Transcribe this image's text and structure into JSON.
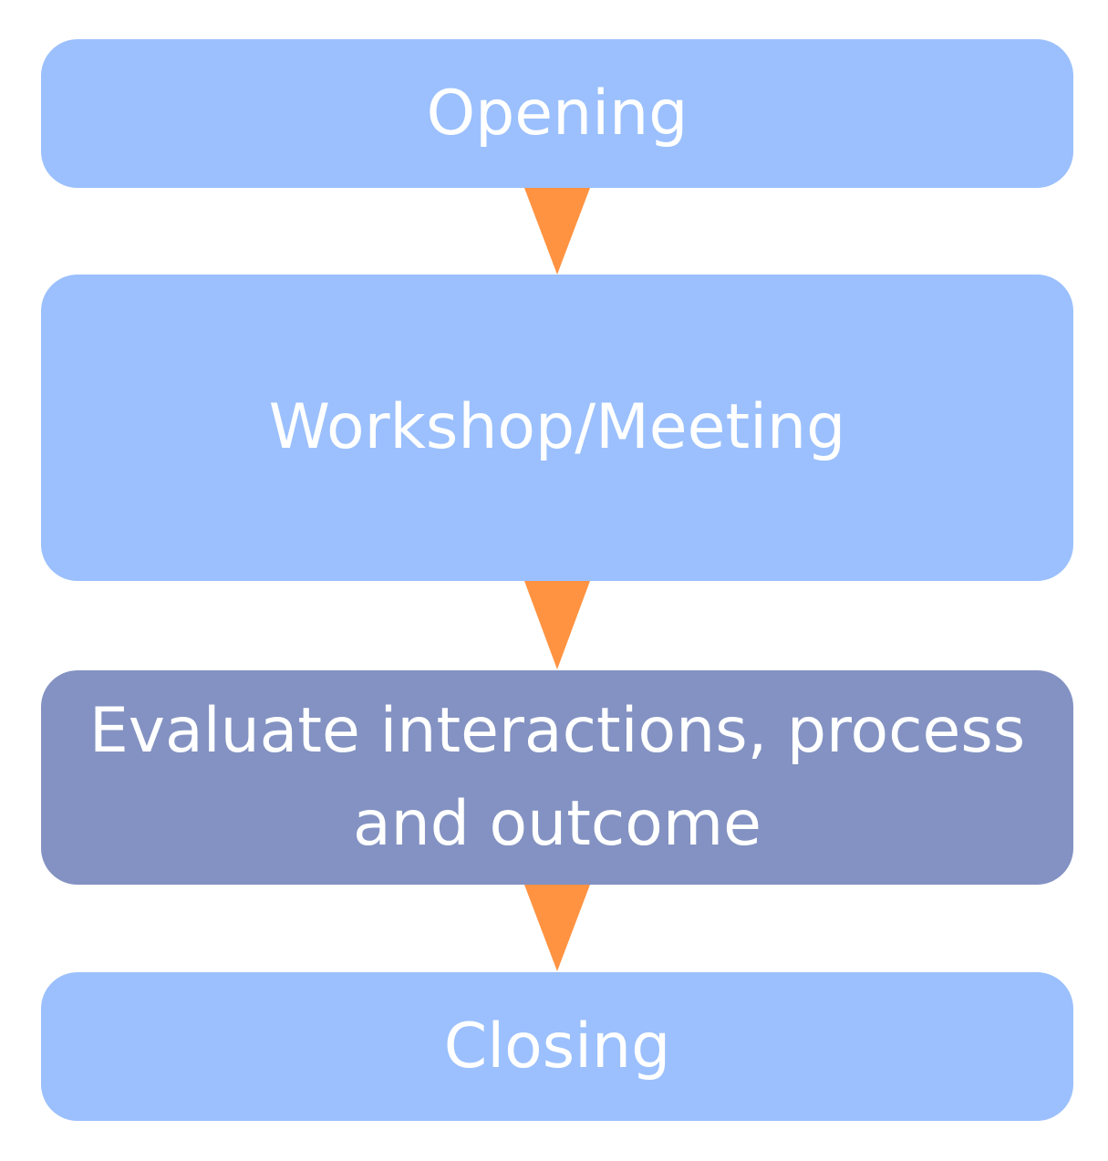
{
  "steps": [
    {
      "label": "Opening",
      "color": "#9bc0fd"
    },
    {
      "label": "Workshop/Meeting",
      "color": "#9bc0fd"
    },
    {
      "label": "Evaluate interactions, process and outcome",
      "color": "#8392c2"
    },
    {
      "label": "Closing",
      "color": "#9bc0fd"
    }
  ],
  "arrow_color": "#ff9342",
  "text_color": "#ffffff"
}
